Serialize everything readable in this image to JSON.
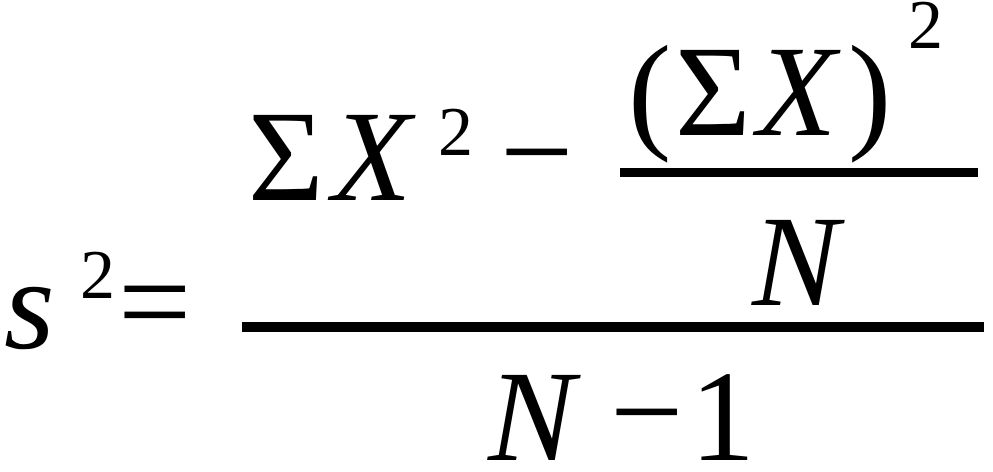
{
  "formula": {
    "lhs": {
      "variable": "s",
      "exponent": "2"
    },
    "equals": "=",
    "numerator": {
      "sum_symbol": "Σ",
      "term_variable": "X",
      "term_exponent": "2",
      "minus": "−",
      "inner_fraction": {
        "open_paren": "(",
        "sum_symbol": "Σ",
        "variable": "X",
        "close_paren": ")",
        "exponent": "2",
        "denominator": "N"
      }
    },
    "denominator": {
      "variable": "N",
      "minus": "−",
      "constant": "1"
    }
  }
}
